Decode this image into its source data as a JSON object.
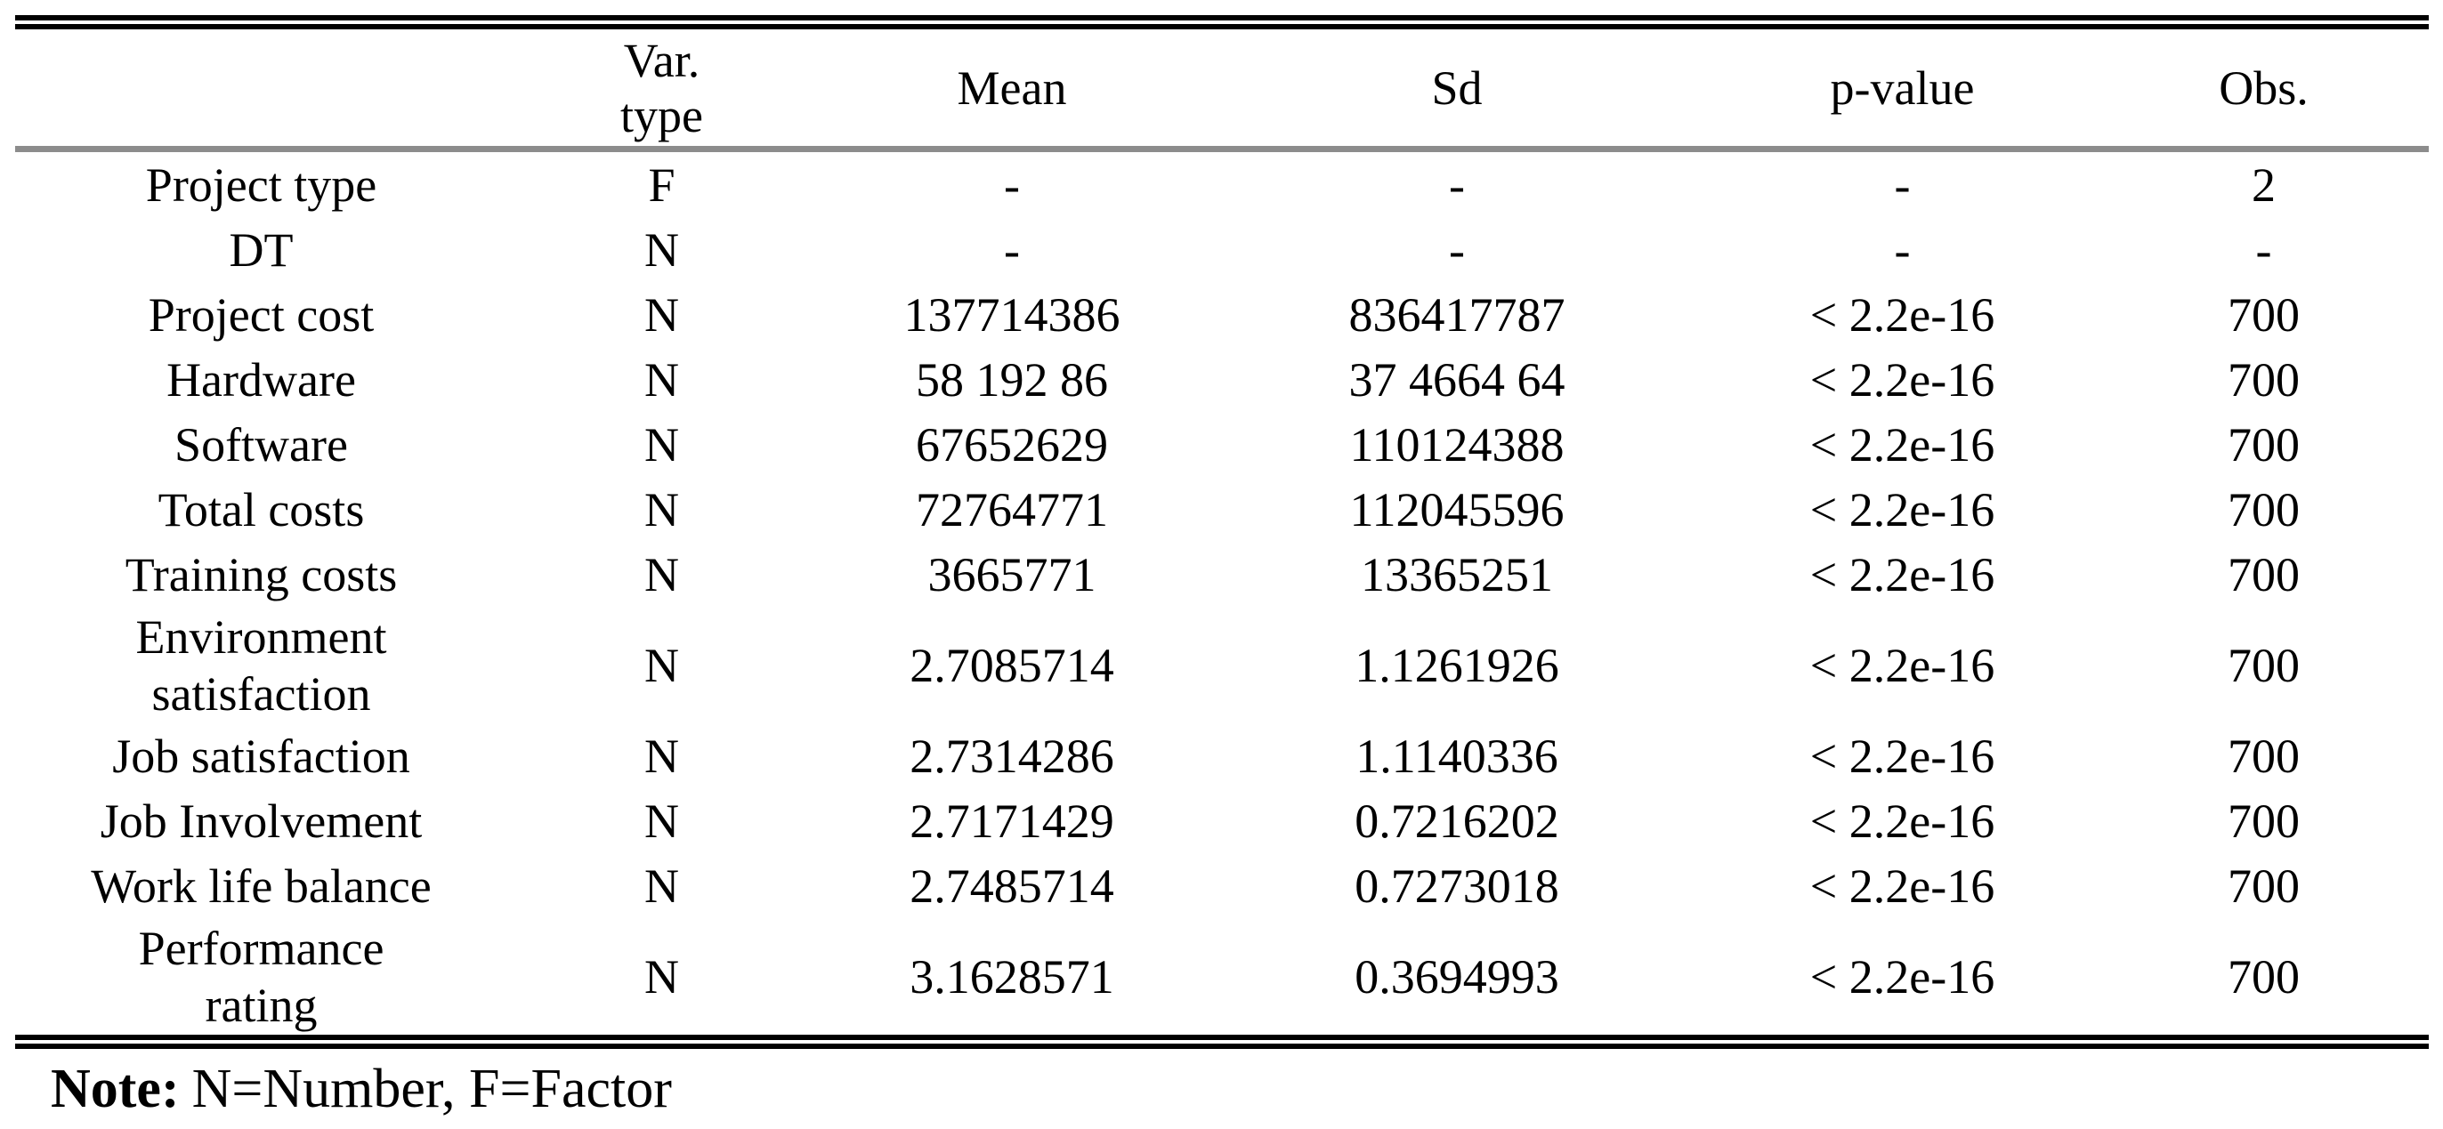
{
  "table": {
    "columns": [
      "",
      "Var.\ntype",
      "Mean",
      "Sd",
      "p-value",
      "Obs."
    ],
    "rows": [
      {
        "variable": "Project type",
        "var_type": "F",
        "mean": "-",
        "sd": "-",
        "p_value": "-",
        "obs": "2"
      },
      {
        "variable": "DT",
        "var_type": "N",
        "mean": "-",
        "sd": "-",
        "p_value": "-",
        "obs": "-"
      },
      {
        "variable": "Project cost",
        "var_type": "N",
        "mean": "137714386",
        "sd": "836417787",
        "p_value": "< 2.2e-16",
        "obs": "700"
      },
      {
        "variable": "Hardware",
        "var_type": "N",
        "mean": "58 192 86",
        "sd": "37 4664 64",
        "p_value": "< 2.2e-16",
        "obs": "700"
      },
      {
        "variable": "Software",
        "var_type": "N",
        "mean": "67652629",
        "sd": "110124388",
        "p_value": "< 2.2e-16",
        "obs": "700"
      },
      {
        "variable": "Total costs",
        "var_type": "N",
        "mean": "72764771",
        "sd": "112045596",
        "p_value": "< 2.2e-16",
        "obs": "700"
      },
      {
        "variable": "Training costs",
        "var_type": "N",
        "mean": "3665771",
        "sd": "13365251",
        "p_value": "< 2.2e-16",
        "obs": "700"
      },
      {
        "variable": "Environment\nsatisfaction",
        "var_type": "N",
        "mean": "2.7085714",
        "sd": "1.1261926",
        "p_value": "< 2.2e-16",
        "obs": "700"
      },
      {
        "variable": "Job satisfaction",
        "var_type": "N",
        "mean": "2.7314286",
        "sd": "1.1140336",
        "p_value": "< 2.2e-16",
        "obs": "700"
      },
      {
        "variable": "Job Involvement",
        "var_type": "N",
        "mean": "2.7171429",
        "sd": "0.7216202",
        "p_value": "< 2.2e-16",
        "obs": "700"
      },
      {
        "variable": "Work life balance",
        "var_type": "N",
        "mean": "2.7485714",
        "sd": "0.7273018",
        "p_value": "< 2.2e-16",
        "obs": "700"
      },
      {
        "variable": "Performance\nrating",
        "var_type": "N",
        "mean": "3.1628571",
        "sd": "0.3694993",
        "p_value": "< 2.2e-16",
        "obs": "700"
      }
    ]
  },
  "note": {
    "label": "Note:",
    "text": "N=Number, F=Factor"
  },
  "colors": {
    "background": "#ffffff",
    "text": "#000000",
    "rule_black": "#000000",
    "rule_gray": "#8c8c8c"
  }
}
